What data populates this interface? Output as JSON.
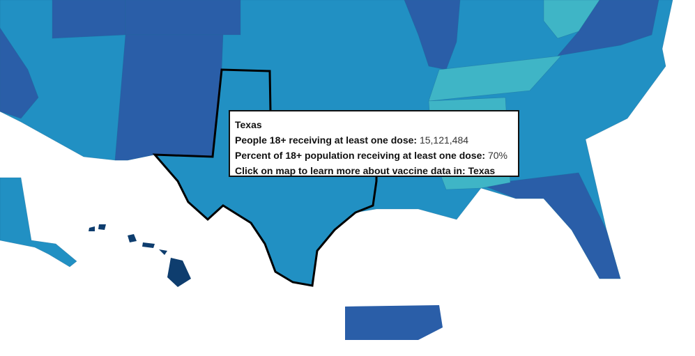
{
  "tooltip": {
    "state": "Texas",
    "rows": [
      {
        "label": "People 18+ receiving at least one dose:",
        "value": "15,121,484"
      },
      {
        "label": "Percent of 18+ population receiving at least one dose:",
        "value": "70%"
      },
      {
        "label": "Click on map to learn more about vaccine data in:",
        "value": "Texas"
      }
    ]
  }
}
